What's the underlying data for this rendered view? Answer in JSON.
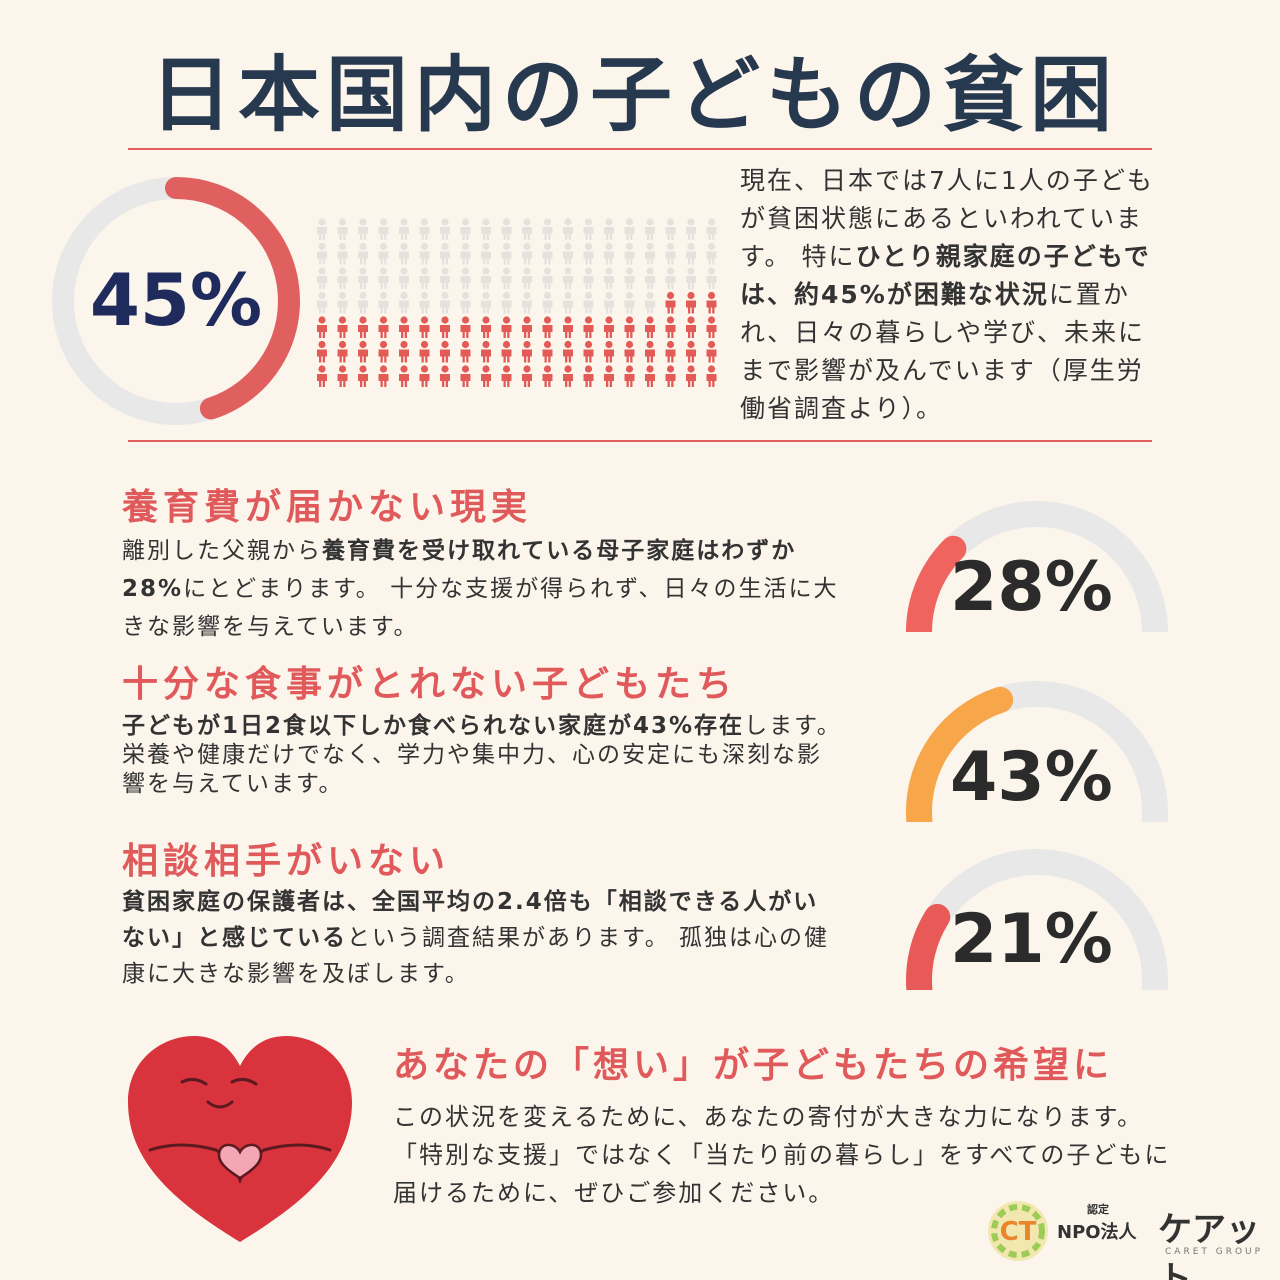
{
  "title": "日本国内の子どもの貧困",
  "colors": {
    "accent_red": "#e0605f",
    "orange": "#f8a64a",
    "gray_track": "#e8e8e8",
    "navy": "#26394f",
    "person_light": "#e5e1dc",
    "person_red": "#e25b57"
  },
  "overview": {
    "percent_label": "45%",
    "percent_value": 45,
    "people_total": 140,
    "people_highlighted": 63,
    "text_parts": [
      {
        "text": "現在、日本では7人に1人の子どもが貧困状態にあるといわれています。 特に",
        "bold": false
      },
      {
        "text": "ひとり親家庭の子どもでは、約45%が困難な状況",
        "bold": true
      },
      {
        "text": "に置かれ、日々の暮らしや学び、未来にまで影響が及んでいます（厚生労働省調査より）。",
        "bold": false
      }
    ]
  },
  "sections": [
    {
      "title": "養育費が届かない現実",
      "body_parts": [
        {
          "text": "離別した父親から",
          "bold": false
        },
        {
          "text": "養育費を受け取れている母子家庭はわずか28%",
          "bold": true
        },
        {
          "text": "にとどまります。 十分な支援が得られず、日々の生活に大きな影響を与えています。",
          "bold": false
        }
      ],
      "percent_label": "28%",
      "percent_value": 28,
      "color": "#f0645f"
    },
    {
      "title": "十分な食事がとれない子どもたち",
      "body_parts": [
        {
          "text": "子どもが1日2食以下しか食べられない家庭が43%存在",
          "bold": true
        },
        {
          "text": "します。栄養や健康だけでなく、学力や集中力、心の安定にも深刻な影響を与えています。",
          "bold": false
        }
      ],
      "percent_label": "43%",
      "percent_value": 43,
      "color": "#f8a64a"
    },
    {
      "title": "相談相手がいない",
      "body_parts": [
        {
          "text": "貧困家庭の保護者は、全国平均の2.4倍も「相談できる人がいない」と感じている",
          "bold": true
        },
        {
          "text": "という調査結果があります。 孤独は心の健康に大きな影響を及ぼします。",
          "bold": false
        }
      ],
      "percent_label": "21%",
      "percent_value": 21,
      "color": "#e85a58"
    }
  ],
  "cta": {
    "title": "あなたの「想い」が子どもたちの希望に",
    "body": "この状況を変えるために、あなたの寄付が大きな力になります。 「特別な支援」ではなく「当たり前の暮らし」をすべての子どもに届けるために、ぜひご参加ください。"
  },
  "logo": {
    "small": "認定",
    "npo": "NPO法人",
    "name": "ケアット",
    "sub": "CARET GROUP"
  }
}
